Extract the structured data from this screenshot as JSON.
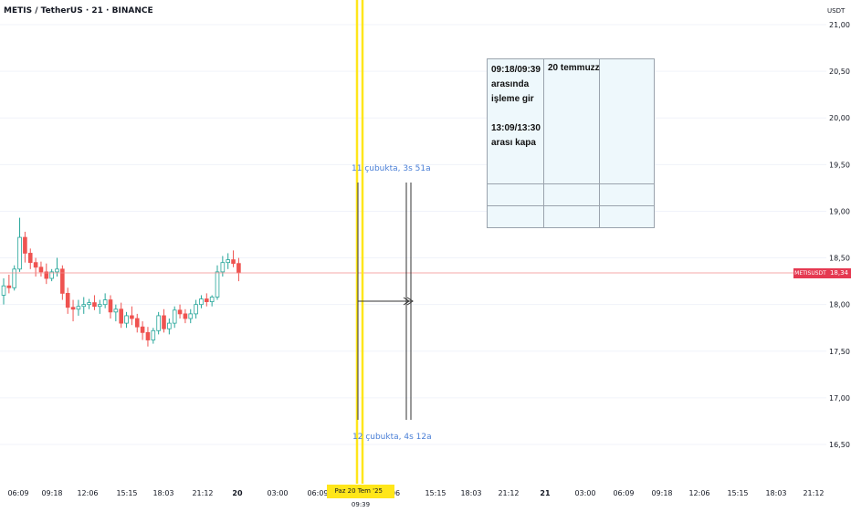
{
  "header": {
    "symbol_title": "METIS / TetherUS · 21 · BINANCE"
  },
  "price_axis": {
    "currency": "USDT",
    "labels": [
      "21,00",
      "20,50",
      "20,00",
      "19,50",
      "19,00",
      "18,50",
      "18,00",
      "17,50",
      "17,00",
      "16,50"
    ],
    "current_symbol": "METISUSDT",
    "current_price": "18,34"
  },
  "time_axis": {
    "labels": [
      "06:09",
      "09:18",
      "12:06",
      "15:15",
      "18:03",
      "21:12",
      "20",
      "03:00",
      "06:09",
      "06",
      "15:15",
      "18:03",
      "21:12",
      "21",
      "03:00",
      "06:09",
      "09:18",
      "12:06",
      "15:15",
      "18:03",
      "21:12"
    ],
    "highlight_date": "Paz 20 Tem '25",
    "highlight_time": "09:39"
  },
  "measurements": {
    "top_label": "11 çubukta, 3s 51a",
    "bottom_label": "12 çubukta, 4s 12a"
  },
  "note_table": {
    "instruction": "09:18/09:39\narasında\nişleme gir\n\n13:09/13:30\narası kapa",
    "date": "20 temmuzz"
  },
  "colors": {
    "up": "#26a69a",
    "down": "#ef5350",
    "highlight_line": "#ffe61a",
    "price_line": "#f28b8b",
    "measure_text": "#4a7fd6"
  },
  "chart_data": {
    "type": "candlestick",
    "title": "METIS / TetherUS · 21 · BINANCE",
    "ylabel": "USDT",
    "ylim": [
      16.3,
      21.05
    ],
    "candles": [
      {
        "o": 18.1,
        "h": 18.28,
        "l": 18.0,
        "c": 18.2
      },
      {
        "o": 18.2,
        "h": 18.32,
        "l": 18.12,
        "c": 18.18
      },
      {
        "o": 18.18,
        "h": 18.42,
        "l": 18.15,
        "c": 18.38
      },
      {
        "o": 18.38,
        "h": 18.93,
        "l": 18.35,
        "c": 18.72
      },
      {
        "o": 18.72,
        "h": 18.78,
        "l": 18.45,
        "c": 18.55
      },
      {
        "o": 18.55,
        "h": 18.6,
        "l": 18.38,
        "c": 18.45
      },
      {
        "o": 18.45,
        "h": 18.5,
        "l": 18.3,
        "c": 18.4
      },
      {
        "o": 18.4,
        "h": 18.46,
        "l": 18.3,
        "c": 18.35
      },
      {
        "o": 18.35,
        "h": 18.44,
        "l": 18.22,
        "c": 18.28
      },
      {
        "o": 18.28,
        "h": 18.38,
        "l": 18.25,
        "c": 18.35
      },
      {
        "o": 18.35,
        "h": 18.5,
        "l": 18.3,
        "c": 18.38
      },
      {
        "o": 18.38,
        "h": 18.42,
        "l": 18.05,
        "c": 18.12
      },
      {
        "o": 18.12,
        "h": 18.18,
        "l": 17.9,
        "c": 17.97
      },
      {
        "o": 17.97,
        "h": 18.05,
        "l": 17.82,
        "c": 17.95
      },
      {
        "o": 17.95,
        "h": 18.05,
        "l": 17.88,
        "c": 17.98
      },
      {
        "o": 17.98,
        "h": 18.08,
        "l": 17.9,
        "c": 18.0
      },
      {
        "o": 18.0,
        "h": 18.06,
        "l": 17.95,
        "c": 18.02
      },
      {
        "o": 18.02,
        "h": 18.1,
        "l": 17.94,
        "c": 17.98
      },
      {
        "o": 17.98,
        "h": 18.05,
        "l": 17.9,
        "c": 18.0
      },
      {
        "o": 18.0,
        "h": 18.12,
        "l": 17.96,
        "c": 18.05
      },
      {
        "o": 18.05,
        "h": 18.1,
        "l": 17.85,
        "c": 17.92
      },
      {
        "o": 17.92,
        "h": 18.0,
        "l": 17.82,
        "c": 17.95
      },
      {
        "o": 17.95,
        "h": 18.02,
        "l": 17.75,
        "c": 17.8
      },
      {
        "o": 17.8,
        "h": 17.92,
        "l": 17.75,
        "c": 17.88
      },
      {
        "o": 17.88,
        "h": 17.98,
        "l": 17.78,
        "c": 17.85
      },
      {
        "o": 17.85,
        "h": 17.9,
        "l": 17.7,
        "c": 17.76
      },
      {
        "o": 17.76,
        "h": 17.82,
        "l": 17.62,
        "c": 17.7
      },
      {
        "o": 17.7,
        "h": 17.76,
        "l": 17.55,
        "c": 17.62
      },
      {
        "o": 17.62,
        "h": 17.75,
        "l": 17.58,
        "c": 17.72
      },
      {
        "o": 17.72,
        "h": 17.92,
        "l": 17.68,
        "c": 17.88
      },
      {
        "o": 17.88,
        "h": 17.95,
        "l": 17.7,
        "c": 17.74
      },
      {
        "o": 17.74,
        "h": 17.85,
        "l": 17.68,
        "c": 17.8
      },
      {
        "o": 17.8,
        "h": 17.98,
        "l": 17.75,
        "c": 17.94
      },
      {
        "o": 17.94,
        "h": 18.0,
        "l": 17.85,
        "c": 17.9
      },
      {
        "o": 17.9,
        "h": 17.95,
        "l": 17.8,
        "c": 17.85
      },
      {
        "o": 17.85,
        "h": 17.95,
        "l": 17.8,
        "c": 17.9
      },
      {
        "o": 17.9,
        "h": 18.05,
        "l": 17.85,
        "c": 18.0
      },
      {
        "o": 18.0,
        "h": 18.1,
        "l": 17.96,
        "c": 18.06
      },
      {
        "o": 18.06,
        "h": 18.12,
        "l": 17.98,
        "c": 18.03
      },
      {
        "o": 18.03,
        "h": 18.1,
        "l": 17.98,
        "c": 18.08
      },
      {
        "o": 18.08,
        "h": 18.42,
        "l": 18.05,
        "c": 18.35
      },
      {
        "o": 18.35,
        "h": 18.52,
        "l": 18.3,
        "c": 18.45
      },
      {
        "o": 18.45,
        "h": 18.55,
        "l": 18.38,
        "c": 18.48
      },
      {
        "o": 18.48,
        "h": 18.58,
        "l": 18.4,
        "c": 18.44
      },
      {
        "o": 18.44,
        "h": 18.5,
        "l": 18.25,
        "c": 18.34
      }
    ],
    "current_price": 18.34
  }
}
